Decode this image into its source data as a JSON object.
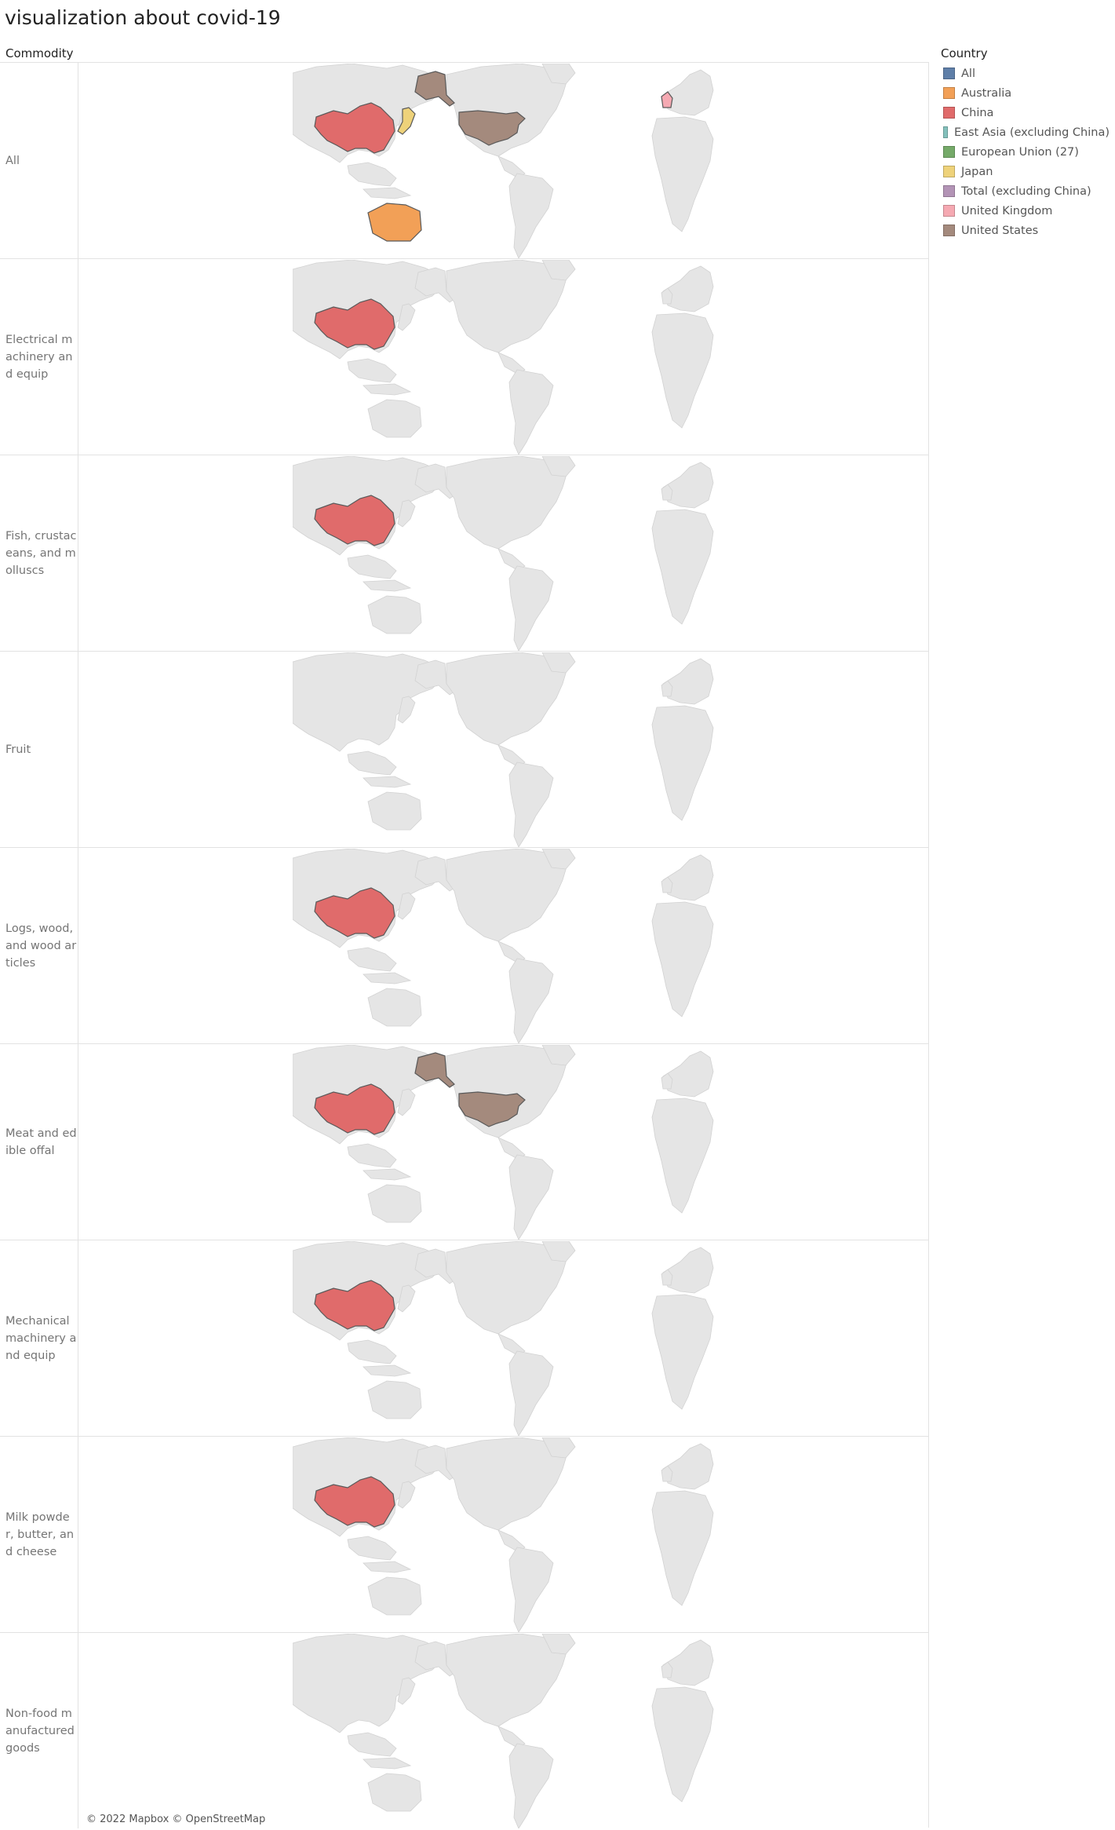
{
  "title": "visualization about covid-19",
  "row_header": "Commodity",
  "legend": {
    "title": "Country",
    "items": [
      {
        "label": "All",
        "color": "#5f7fa8"
      },
      {
        "label": "Australia",
        "color": "#f2a057"
      },
      {
        "label": "China",
        "color": "#e06b6b"
      },
      {
        "label": "East Asia (excluding China)",
        "color": "#84c1bc"
      },
      {
        "label": "European Union (27)",
        "color": "#75aa69"
      },
      {
        "label": "Japan",
        "color": "#eed27a"
      },
      {
        "label": "Total (excluding China)",
        "color": "#b394b6"
      },
      {
        "label": "United Kingdom",
        "color": "#f5a9b2"
      },
      {
        "label": "United States",
        "color": "#a48a7d"
      }
    ]
  },
  "rows": [
    {
      "label": "All",
      "highlighted": [
        "China",
        "Japan",
        "Australia",
        "United States",
        "United Kingdom"
      ]
    },
    {
      "label": "Electrical machinery and equip",
      "highlighted": [
        "China"
      ]
    },
    {
      "label": "Fish, crustaceans, and molluscs",
      "highlighted": [
        "China"
      ]
    },
    {
      "label": "Fruit",
      "highlighted": []
    },
    {
      "label": "Logs, wood, and wood articles",
      "highlighted": [
        "China"
      ]
    },
    {
      "label": "Meat and edible offal",
      "highlighted": [
        "China",
        "United States"
      ]
    },
    {
      "label": "Mechanical machinery and equip",
      "highlighted": [
        "China"
      ]
    },
    {
      "label": "Milk powder, butter, and cheese",
      "highlighted": [
        "China"
      ]
    },
    {
      "label": "Non-food manufactured goods",
      "highlighted": []
    }
  ],
  "copyright": "© 2022 Mapbox © OpenStreetMap"
}
